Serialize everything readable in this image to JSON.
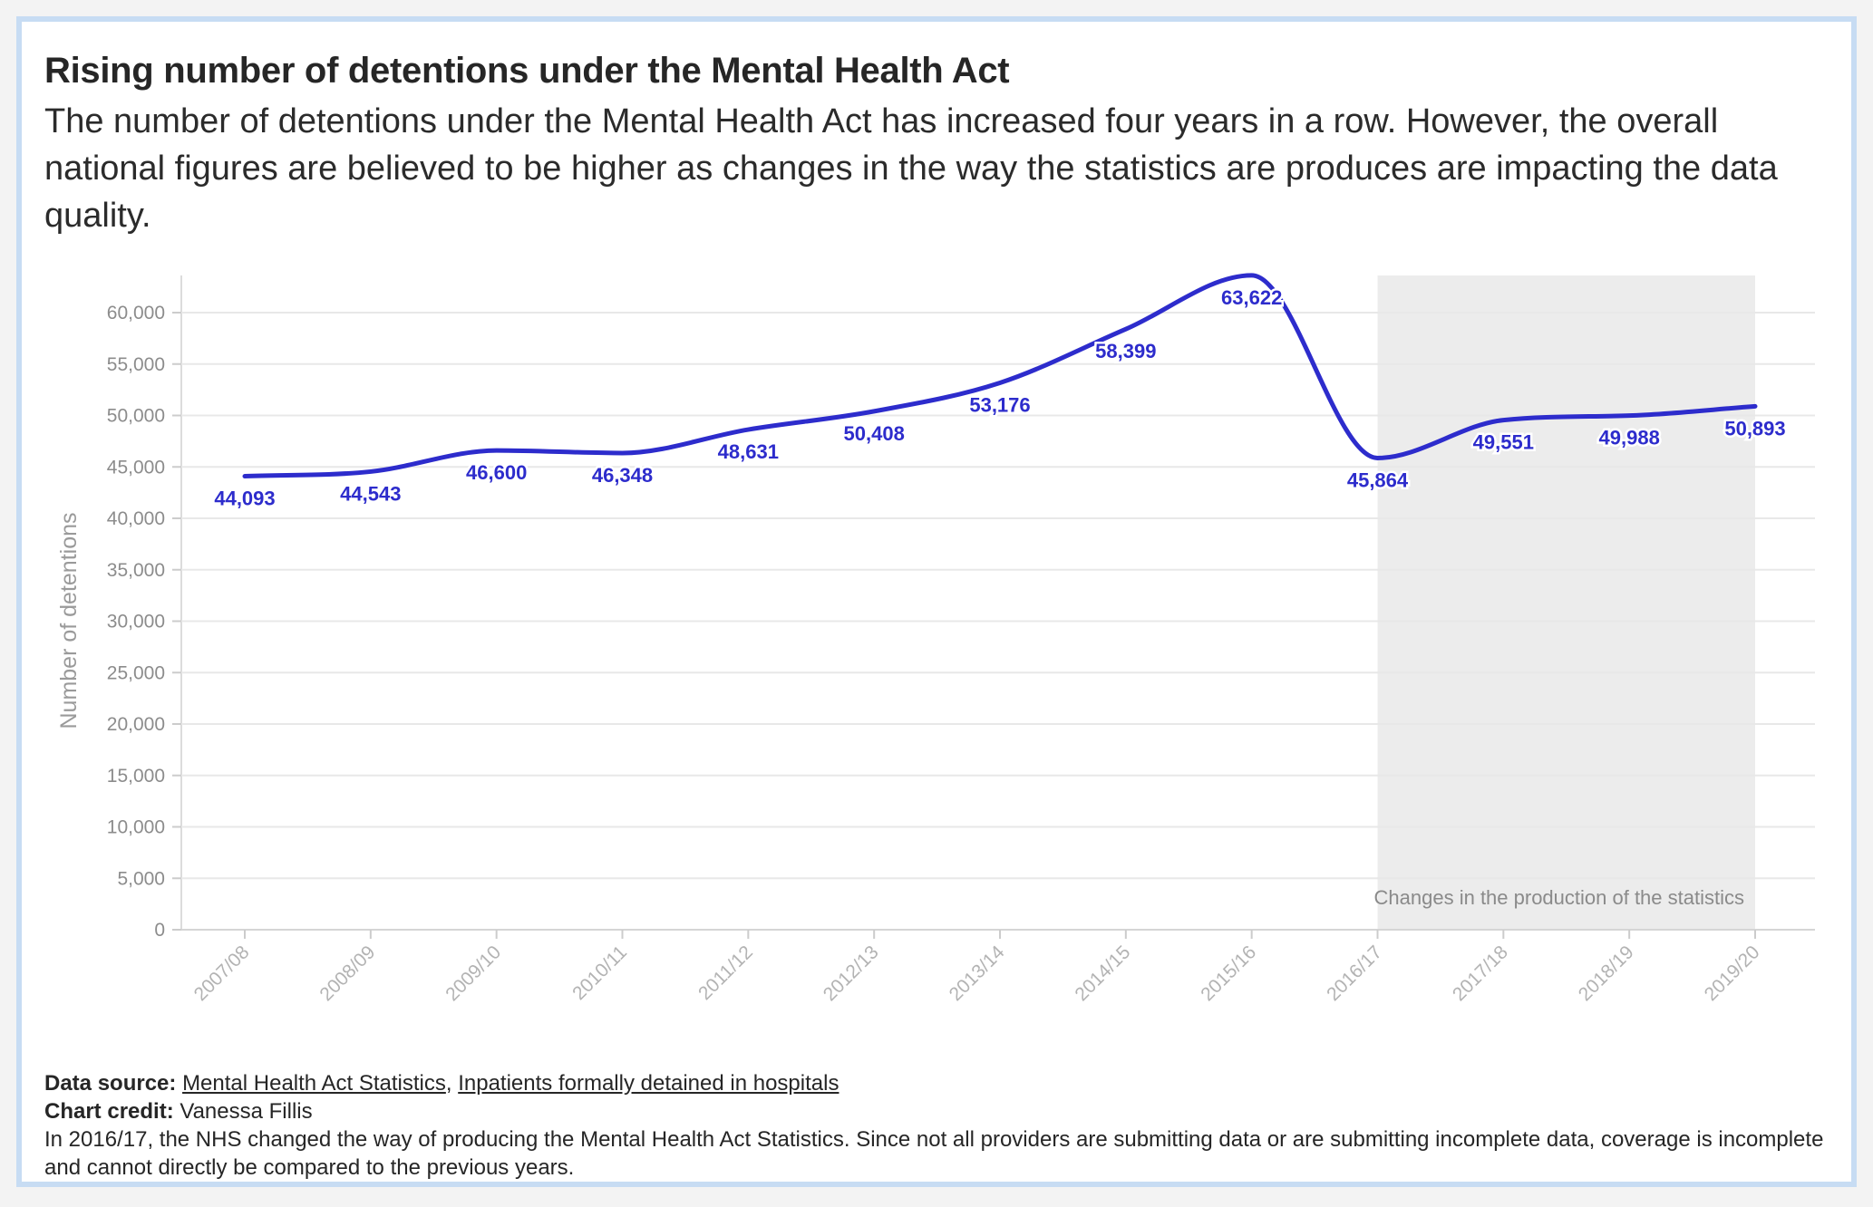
{
  "header": {
    "title": "Rising number of detentions under the Mental Health Act",
    "subtitle": "The number of detentions under the Mental Health Act has increased four years in a row. However, the overall national figures are believed to be higher as changes in the way the statistics are produces are impacting the data quality."
  },
  "chart_data": {
    "type": "line",
    "title": "Rising number of detentions under the Mental Health Act",
    "xlabel": "",
    "ylabel": "Number of detentions",
    "categories": [
      "2007/08",
      "2008/09",
      "2009/10",
      "2010/11",
      "2011/12",
      "2012/13",
      "2013/14",
      "2014/15",
      "2015/16",
      "2016/17",
      "2017/18",
      "2018/19",
      "2019/20"
    ],
    "values": [
      44093,
      44543,
      46600,
      46348,
      48631,
      50408,
      53176,
      58399,
      63622,
      45864,
      49551,
      49988,
      50893
    ],
    "data_labels": [
      "44,093",
      "44,543",
      "46,600",
      "46,348",
      "48,631",
      "50,408",
      "53,176",
      "58,399",
      "63,622",
      "45,864",
      "49,551",
      "49,988",
      "50,893"
    ],
    "ylim": [
      0,
      64000
    ],
    "y_ticks": [
      0,
      5000,
      10000,
      15000,
      20000,
      25000,
      30000,
      35000,
      40000,
      45000,
      50000,
      55000,
      60000
    ],
    "y_tick_labels": [
      "0",
      "5,000",
      "10,000",
      "15,000",
      "20,000",
      "25,000",
      "30,000",
      "35,000",
      "40,000",
      "45,000",
      "50,000",
      "55,000",
      "60,000"
    ],
    "grid": true,
    "line_color": "#2d2ccc",
    "shaded_region": {
      "from": "2016/17",
      "to": "2019/20",
      "label": "Changes in the production of the statistics",
      "color": "#ececec"
    }
  },
  "footer": {
    "source_label": "Data source:",
    "source_link_1": "Mental Health Act Statistics",
    "source_sep": ",",
    "source_link_2": "Inpatients formally detained in hospitals",
    "credit_label": "Chart credit:",
    "credit_name": "Vanessa Fillis",
    "note": "In 2016/17, the NHS changed the way of producing the Mental Health Act Statistics. Since not all providers are submitting data or are submitting incomplete data, coverage is incomplete and cannot directly be compared to the previous years."
  }
}
